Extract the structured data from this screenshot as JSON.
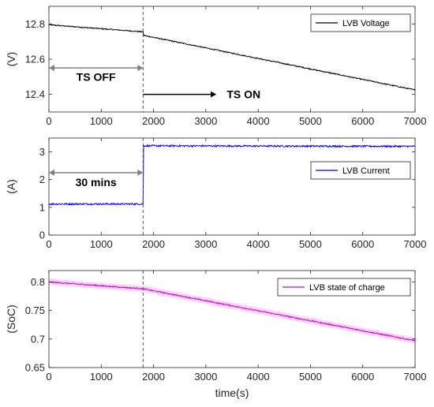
{
  "chart_data": [
    {
      "type": "line",
      "title": "",
      "xlabel": "",
      "ylabel": "(V)",
      "xlim": [
        0,
        7000
      ],
      "ylim": [
        12.3,
        12.9
      ],
      "xticks": [
        0,
        1000,
        2000,
        3000,
        4000,
        5000,
        6000,
        7000
      ],
      "yticks": [
        12.4,
        12.6,
        12.8
      ],
      "ytick_labels": [
        "12.4",
        "12.6",
        "12.8"
      ],
      "legend": "top-right",
      "grid": false,
      "series": [
        {
          "name": "LVB Voltage",
          "color": "#000000",
          "noise": 0.003,
          "x": [
            0,
            1800,
            1810,
            7000
          ],
          "y": [
            12.795,
            12.755,
            12.735,
            12.425
          ]
        }
      ],
      "vline_x": 1800,
      "annotations": [
        {
          "text": "TS OFF",
          "x": 900,
          "y": 12.5,
          "arrow": "double",
          "arrow_x": [
            0,
            1800
          ],
          "arrow_y": 12.55,
          "arrow_color": "#808080"
        },
        {
          "text": "TS ON",
          "x": 3400,
          "y": 12.4,
          "arrow": "single",
          "arrow_x": [
            1800,
            3200
          ],
          "arrow_y": 12.4,
          "arrow_color": "#000000"
        }
      ]
    },
    {
      "type": "line",
      "title": "",
      "xlabel": "",
      "ylabel": "(A)",
      "xlim": [
        0,
        7000
      ],
      "ylim": [
        0,
        3.5
      ],
      "xticks": [
        0,
        1000,
        2000,
        3000,
        4000,
        5000,
        6000,
        7000
      ],
      "yticks": [
        0,
        1,
        2,
        3
      ],
      "ytick_labels": [
        "0",
        "1",
        "2",
        "3"
      ],
      "legend": "middle-right",
      "grid": false,
      "series": [
        {
          "name": "LVB Current",
          "color": "#0000ff",
          "noise": 0.03,
          "x": [
            0,
            1790,
            1800,
            1810,
            7000
          ],
          "y": [
            1.12,
            1.12,
            1.12,
            3.22,
            3.2
          ]
        }
      ],
      "vline_x": 1800,
      "annotations": [
        {
          "text": "30 mins",
          "x": 900,
          "y": 1.9,
          "arrow": "double",
          "arrow_x": [
            0,
            1800
          ],
          "arrow_y": 2.25,
          "arrow_color": "#808080"
        }
      ]
    },
    {
      "type": "line",
      "title": "",
      "xlabel": "time(s)",
      "ylabel": "(SoC)",
      "xlim": [
        0,
        7000
      ],
      "ylim": [
        0.65,
        0.82
      ],
      "xticks": [
        0,
        1000,
        2000,
        3000,
        4000,
        5000,
        6000,
        7000
      ],
      "yticks": [
        0.65,
        0.7,
        0.75,
        0.8
      ],
      "ytick_labels": [
        "0.65",
        "0.7",
        "0.75",
        "0.8"
      ],
      "legend": "top-right",
      "grid": false,
      "series": [
        {
          "name": "LVB state of charge",
          "color": "#cc00cc",
          "band_color": "#ffb3ff",
          "noise": 0.001,
          "x": [
            0,
            1800,
            7000
          ],
          "y": [
            0.8,
            0.788,
            0.697
          ]
        }
      ],
      "vline_x": 1800,
      "annotations": []
    }
  ]
}
